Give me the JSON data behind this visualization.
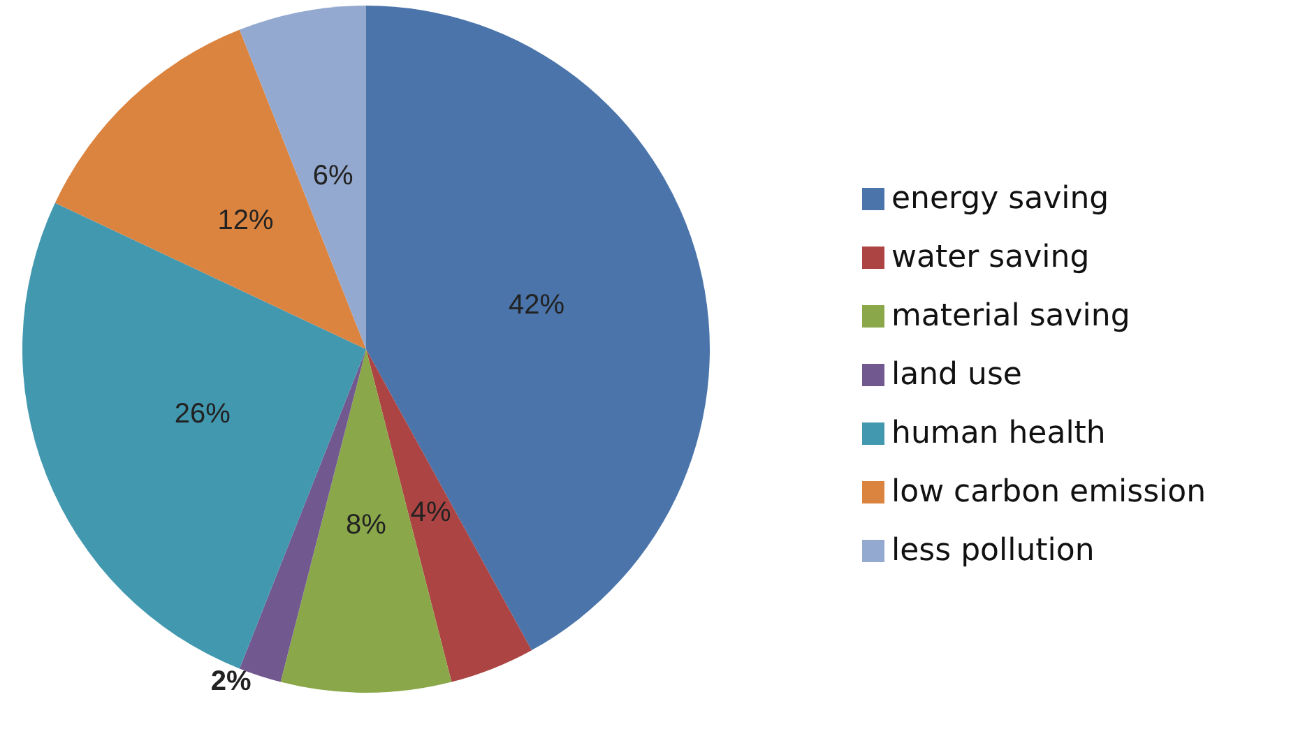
{
  "chart_data": {
    "type": "pie",
    "categories": [
      "energy saving",
      "water saving",
      "material saving",
      "land use",
      "human health",
      "low carbon emission",
      "less pollution"
    ],
    "values": [
      42,
      4,
      8,
      2,
      26,
      12,
      6
    ],
    "value_labels": [
      "42%",
      "4%",
      "8%",
      "2%",
      "26%",
      "12%",
      "6%"
    ],
    "colors": [
      "#4a74aa",
      "#ab4442",
      "#8aa84a",
      "#71588f",
      "#4298af",
      "#db8440",
      "#94a9d0"
    ],
    "legend": "right"
  }
}
